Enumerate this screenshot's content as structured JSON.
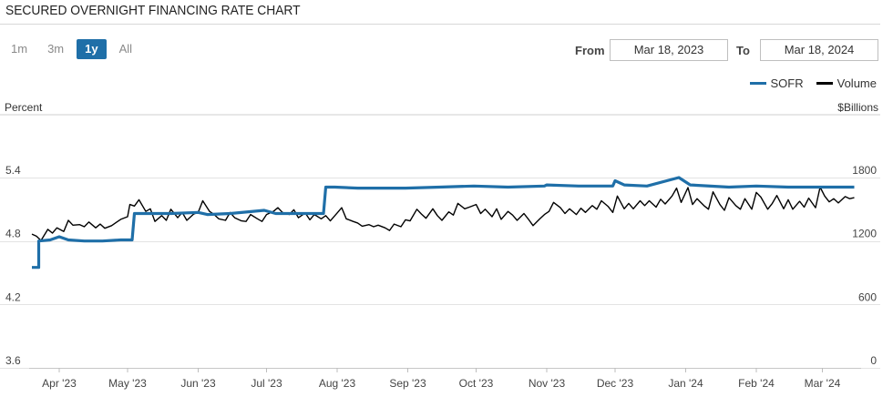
{
  "title": "SECURED OVERNIGHT FINANCING RATE CHART",
  "ranges": [
    {
      "label": "1m",
      "active": false
    },
    {
      "label": "3m",
      "active": false
    },
    {
      "label": "1y",
      "active": true
    },
    {
      "label": "All",
      "active": false
    }
  ],
  "from_label": "From",
  "from_value": "Mar 18, 2023",
  "to_label": "To",
  "to_value": "Mar 18, 2024",
  "legend": [
    {
      "name": "SOFR",
      "color": "#1f6fa8"
    },
    {
      "name": "Volume",
      "color": "#000000"
    }
  ],
  "chart_data": {
    "type": "line",
    "left_axis_title": "Percent",
    "right_axis_title": "$Billions",
    "left_ticks": [
      "5.4",
      "4.8",
      "4.2",
      "3.6"
    ],
    "left_tick_values": [
      5.4,
      4.8,
      4.2,
      3.6
    ],
    "right_ticks": [
      "1800",
      "1200",
      "600",
      "0"
    ],
    "right_tick_values": [
      1800,
      1200,
      600,
      0
    ],
    "left_range": [
      3.6,
      5.4
    ],
    "right_range": [
      0,
      1800
    ],
    "x_range": [
      "2023-03-18",
      "2024-03-18"
    ],
    "x_ticks": [
      "Apr '23",
      "May '23",
      "Jun '23",
      "Jul '23",
      "Aug '23",
      "Sep '23",
      "Oct '23",
      "Nov '23",
      "Dec '23",
      "Jan '24",
      "Feb '24",
      "Mar '24"
    ],
    "x_tick_dates": [
      "2023-04-01",
      "2023-05-01",
      "2023-06-01",
      "2023-07-01",
      "2023-08-01",
      "2023-09-01",
      "2023-10-01",
      "2023-11-01",
      "2023-12-01",
      "2024-01-01",
      "2024-02-01",
      "2024-03-01"
    ],
    "grid": "horizontal",
    "legend_position": "top-right",
    "series": [
      {
        "name": "SOFR",
        "axis": "left",
        "color": "#1f6fa8",
        "points": [
          [
            "2023-03-20",
            4.55
          ],
          [
            "2023-03-23",
            4.55
          ],
          [
            "2023-03-23",
            4.8
          ],
          [
            "2023-03-28",
            4.81
          ],
          [
            "2023-04-01",
            4.84
          ],
          [
            "2023-04-05",
            4.81
          ],
          [
            "2023-04-12",
            4.8
          ],
          [
            "2023-04-20",
            4.8
          ],
          [
            "2023-04-28",
            4.81
          ],
          [
            "2023-05-03",
            4.81
          ],
          [
            "2023-05-04",
            5.06
          ],
          [
            "2023-05-20",
            5.06
          ],
          [
            "2023-06-01",
            5.07
          ],
          [
            "2023-06-05",
            5.05
          ],
          [
            "2023-06-15",
            5.06
          ],
          [
            "2023-06-30",
            5.09
          ],
          [
            "2023-07-05",
            5.06
          ],
          [
            "2023-07-26",
            5.06
          ],
          [
            "2023-07-27",
            5.31
          ],
          [
            "2023-07-31",
            5.31
          ],
          [
            "2023-08-10",
            5.3
          ],
          [
            "2023-08-31",
            5.3
          ],
          [
            "2023-09-15",
            5.31
          ],
          [
            "2023-09-30",
            5.32
          ],
          [
            "2023-10-15",
            5.31
          ],
          [
            "2023-10-31",
            5.32
          ],
          [
            "2023-11-01",
            5.33
          ],
          [
            "2023-11-15",
            5.32
          ],
          [
            "2023-11-30",
            5.32
          ],
          [
            "2023-12-01",
            5.37
          ],
          [
            "2023-12-05",
            5.33
          ],
          [
            "2023-12-15",
            5.32
          ],
          [
            "2023-12-29",
            5.4
          ],
          [
            "2024-01-03",
            5.33
          ],
          [
            "2024-01-20",
            5.31
          ],
          [
            "2024-02-01",
            5.32
          ],
          [
            "2024-02-15",
            5.31
          ],
          [
            "2024-03-01",
            5.31
          ],
          [
            "2024-03-15",
            5.31
          ]
        ]
      },
      {
        "name": "Volume",
        "axis": "right",
        "color": "#000000",
        "points": [
          [
            "2023-03-20",
            1265
          ],
          [
            "2023-03-22",
            1245
          ],
          [
            "2023-03-24",
            1205
          ],
          [
            "2023-03-27",
            1310
          ],
          [
            "2023-03-29",
            1275
          ],
          [
            "2023-03-31",
            1325
          ],
          [
            "2023-04-03",
            1290
          ],
          [
            "2023-04-05",
            1395
          ],
          [
            "2023-04-07",
            1350
          ],
          [
            "2023-04-10",
            1355
          ],
          [
            "2023-04-12",
            1335
          ],
          [
            "2023-04-14",
            1380
          ],
          [
            "2023-04-17",
            1325
          ],
          [
            "2023-04-19",
            1360
          ],
          [
            "2023-04-21",
            1320
          ],
          [
            "2023-04-24",
            1345
          ],
          [
            "2023-04-26",
            1375
          ],
          [
            "2023-04-28",
            1405
          ],
          [
            "2023-05-01",
            1430
          ],
          [
            "2023-05-02",
            1545
          ],
          [
            "2023-05-04",
            1530
          ],
          [
            "2023-05-06",
            1590
          ],
          [
            "2023-05-09",
            1480
          ],
          [
            "2023-05-11",
            1505
          ],
          [
            "2023-05-13",
            1385
          ],
          [
            "2023-05-16",
            1440
          ],
          [
            "2023-05-18",
            1395
          ],
          [
            "2023-05-20",
            1500
          ],
          [
            "2023-05-23",
            1420
          ],
          [
            "2023-05-25",
            1470
          ],
          [
            "2023-05-27",
            1395
          ],
          [
            "2023-05-30",
            1455
          ],
          [
            "2023-06-01",
            1470
          ],
          [
            "2023-06-03",
            1580
          ],
          [
            "2023-06-06",
            1480
          ],
          [
            "2023-06-08",
            1450
          ],
          [
            "2023-06-10",
            1410
          ],
          [
            "2023-06-13",
            1395
          ],
          [
            "2023-06-15",
            1470
          ],
          [
            "2023-06-17",
            1420
          ],
          [
            "2023-06-20",
            1390
          ],
          [
            "2023-06-22",
            1385
          ],
          [
            "2023-06-24",
            1450
          ],
          [
            "2023-06-27",
            1410
          ],
          [
            "2023-06-29",
            1385
          ],
          [
            "2023-07-01",
            1450
          ],
          [
            "2023-07-04",
            1480
          ],
          [
            "2023-07-06",
            1515
          ],
          [
            "2023-07-08",
            1470
          ],
          [
            "2023-07-11",
            1450
          ],
          [
            "2023-07-13",
            1495
          ],
          [
            "2023-07-15",
            1420
          ],
          [
            "2023-07-18",
            1465
          ],
          [
            "2023-07-20",
            1400
          ],
          [
            "2023-07-22",
            1450
          ],
          [
            "2023-07-25",
            1410
          ],
          [
            "2023-07-27",
            1440
          ],
          [
            "2023-07-29",
            1390
          ],
          [
            "2023-08-01",
            1465
          ],
          [
            "2023-08-03",
            1515
          ],
          [
            "2023-08-05",
            1410
          ],
          [
            "2023-08-08",
            1385
          ],
          [
            "2023-08-10",
            1370
          ],
          [
            "2023-08-12",
            1340
          ],
          [
            "2023-08-15",
            1355
          ],
          [
            "2023-08-17",
            1335
          ],
          [
            "2023-08-19",
            1350
          ],
          [
            "2023-08-22",
            1325
          ],
          [
            "2023-08-24",
            1300
          ],
          [
            "2023-08-26",
            1360
          ],
          [
            "2023-08-29",
            1335
          ],
          [
            "2023-08-31",
            1400
          ],
          [
            "2023-09-02",
            1390
          ],
          [
            "2023-09-05",
            1500
          ],
          [
            "2023-09-07",
            1455
          ],
          [
            "2023-09-09",
            1415
          ],
          [
            "2023-09-12",
            1505
          ],
          [
            "2023-09-14",
            1440
          ],
          [
            "2023-09-16",
            1395
          ],
          [
            "2023-09-19",
            1475
          ],
          [
            "2023-09-21",
            1445
          ],
          [
            "2023-09-23",
            1555
          ],
          [
            "2023-09-26",
            1505
          ],
          [
            "2023-09-28",
            1520
          ],
          [
            "2023-10-01",
            1545
          ],
          [
            "2023-10-03",
            1460
          ],
          [
            "2023-10-05",
            1500
          ],
          [
            "2023-10-08",
            1430
          ],
          [
            "2023-10-10",
            1505
          ],
          [
            "2023-10-12",
            1405
          ],
          [
            "2023-10-15",
            1480
          ],
          [
            "2023-10-17",
            1445
          ],
          [
            "2023-10-19",
            1395
          ],
          [
            "2023-10-22",
            1460
          ],
          [
            "2023-10-24",
            1405
          ],
          [
            "2023-10-26",
            1345
          ],
          [
            "2023-10-29",
            1410
          ],
          [
            "2023-10-31",
            1450
          ],
          [
            "2023-11-02",
            1480
          ],
          [
            "2023-11-04",
            1565
          ],
          [
            "2023-11-07",
            1515
          ],
          [
            "2023-11-09",
            1460
          ],
          [
            "2023-11-11",
            1505
          ],
          [
            "2023-11-14",
            1450
          ],
          [
            "2023-11-16",
            1510
          ],
          [
            "2023-11-18",
            1470
          ],
          [
            "2023-11-21",
            1535
          ],
          [
            "2023-11-23",
            1500
          ],
          [
            "2023-11-25",
            1580
          ],
          [
            "2023-11-28",
            1525
          ],
          [
            "2023-11-30",
            1470
          ],
          [
            "2023-12-02",
            1625
          ],
          [
            "2023-12-05",
            1505
          ],
          [
            "2023-12-07",
            1555
          ],
          [
            "2023-12-09",
            1505
          ],
          [
            "2023-12-12",
            1580
          ],
          [
            "2023-12-14",
            1535
          ],
          [
            "2023-12-16",
            1580
          ],
          [
            "2023-12-19",
            1520
          ],
          [
            "2023-12-21",
            1595
          ],
          [
            "2023-12-23",
            1550
          ],
          [
            "2023-12-26",
            1625
          ],
          [
            "2023-12-28",
            1700
          ],
          [
            "2023-12-30",
            1565
          ],
          [
            "2024-01-02",
            1705
          ],
          [
            "2024-01-04",
            1545
          ],
          [
            "2024-01-06",
            1600
          ],
          [
            "2024-01-09",
            1535
          ],
          [
            "2024-01-11",
            1500
          ],
          [
            "2024-01-13",
            1665
          ],
          [
            "2024-01-16",
            1545
          ],
          [
            "2024-01-18",
            1490
          ],
          [
            "2024-01-20",
            1610
          ],
          [
            "2024-01-23",
            1535
          ],
          [
            "2024-01-25",
            1500
          ],
          [
            "2024-01-27",
            1600
          ],
          [
            "2024-01-30",
            1500
          ],
          [
            "2024-02-01",
            1660
          ],
          [
            "2024-02-03",
            1615
          ],
          [
            "2024-02-06",
            1500
          ],
          [
            "2024-02-08",
            1555
          ],
          [
            "2024-02-10",
            1630
          ],
          [
            "2024-02-13",
            1505
          ],
          [
            "2024-02-15",
            1590
          ],
          [
            "2024-02-17",
            1500
          ],
          [
            "2024-02-20",
            1575
          ],
          [
            "2024-02-22",
            1520
          ],
          [
            "2024-02-24",
            1605
          ],
          [
            "2024-02-27",
            1515
          ],
          [
            "2024-02-29",
            1710
          ],
          [
            "2024-03-02",
            1625
          ],
          [
            "2024-03-04",
            1570
          ],
          [
            "2024-03-06",
            1600
          ],
          [
            "2024-03-08",
            1560
          ],
          [
            "2024-03-11",
            1620
          ],
          [
            "2024-03-13",
            1600
          ],
          [
            "2024-03-15",
            1610
          ]
        ]
      }
    ]
  }
}
